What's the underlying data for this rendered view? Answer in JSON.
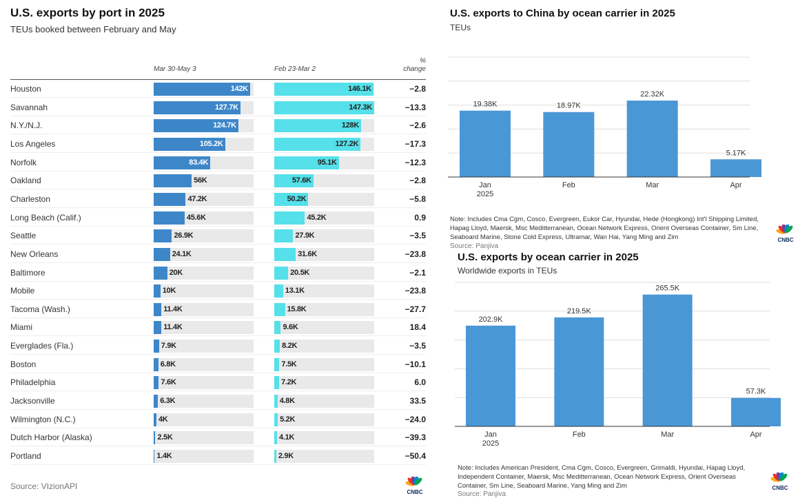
{
  "left": {
    "title": "U.S. exports by port in 2025",
    "subtitle": "TEUs booked between February and May",
    "col1": "Mar 30-May 3",
    "col2": "Feb 23-Mar 2",
    "col3a": "%",
    "col3b": "change",
    "source": "Source: VIzionAPI",
    "logo": "CNBC"
  },
  "chart_data": [
    {
      "type": "table",
      "title": "U.S. exports by port in 2025",
      "columns": [
        "Port",
        "Mar 30-May 3",
        "Feb 23-Mar 2",
        "% change"
      ],
      "colors": [
        "#3d87c9",
        "#55e0ea"
      ],
      "rows": [
        [
          "Houston",
          142,
          "142K",
          146.1,
          "146.1K",
          "−2.8"
        ],
        [
          "Savannah",
          127.7,
          "127.7K",
          147.3,
          "147.3K",
          "−13.3"
        ],
        [
          "N.Y./N.J.",
          124.7,
          "124.7K",
          128,
          "128K",
          "−2.6"
        ],
        [
          "Los Angeles",
          105.2,
          "105.2K",
          127.2,
          "127.2K",
          "−17.3"
        ],
        [
          "Norfolk",
          83.4,
          "83.4K",
          95.1,
          "95.1K",
          "−12.3"
        ],
        [
          "Oakland",
          56,
          "56K",
          57.6,
          "57.6K",
          "−2.8"
        ],
        [
          "Charleston",
          47.2,
          "47.2K",
          50.2,
          "50.2K",
          "−5.8"
        ],
        [
          "Long Beach (Calif.)",
          45.6,
          "45.6K",
          45.2,
          "45.2K",
          "0.9"
        ],
        [
          "Seattle",
          26.9,
          "26.9K",
          27.9,
          "27.9K",
          "−3.5"
        ],
        [
          "New Orleans",
          24.1,
          "24.1K",
          31.6,
          "31.6K",
          "−23.8"
        ],
        [
          "Baltimore",
          20,
          "20K",
          20.5,
          "20.5K",
          "−2.1"
        ],
        [
          "Mobile",
          10,
          "10K",
          13.1,
          "13.1K",
          "−23.8"
        ],
        [
          "Tacoma (Wash.)",
          11.4,
          "11.4K",
          15.8,
          "15.8K",
          "−27.7"
        ],
        [
          "Miami",
          11.4,
          "11.4K",
          9.6,
          "9.6K",
          "18.4"
        ],
        [
          "Everglades (Fla.)",
          7.9,
          "7.9K",
          8.2,
          "8.2K",
          "−3.5"
        ],
        [
          "Boston",
          6.8,
          "6.8K",
          7.5,
          "7.5K",
          "−10.1"
        ],
        [
          "Philadelphia",
          7.6,
          "7.6K",
          7.2,
          "7.2K",
          "6.0"
        ],
        [
          "Jacksonville",
          6.3,
          "6.3K",
          4.8,
          "4.8K",
          "33.5"
        ],
        [
          "Wilmington (N.C.)",
          4,
          "4K",
          5.2,
          "5.2K",
          "−24.0"
        ],
        [
          "Dutch Harbor (Alaska)",
          2.5,
          "2.5K",
          4.1,
          "4.1K",
          "−39.3"
        ],
        [
          "Portland",
          1.4,
          "1.4K",
          2.9,
          "2.9K",
          "−50.4"
        ]
      ],
      "xlim": [
        0,
        147.3
      ]
    },
    {
      "type": "bar",
      "title": "U.S. exports to China by ocean carrier in 2025",
      "subtitle": "TEUs",
      "categories": [
        "Jan\n2025",
        "Feb",
        "Mar",
        "Apr"
      ],
      "values": [
        19380,
        18970,
        22320,
        5170
      ],
      "labels": [
        "19.38K",
        "18.97K",
        "22.32K",
        "5.17K"
      ],
      "ylim": [
        0,
        35000
      ],
      "color": "#4a97d6",
      "note": "Note: Includes Cma Cgm, Cosco, Evergreen, Eukor Car, Hyundai, Hede (Hongkong) Int'l Shipping Limited, Hapag Lloyd, Maersk, Msc Meditterranean, Ocean Network Express, Orient Overseas Container, Sm Line, Seaboard Marine, Stone Cold Express, Ultramar, Wan Hai, Yang Ming and Zim",
      "source": "Source: Panjiva",
      "logo": "CNBC"
    },
    {
      "type": "bar",
      "title": "U.S. exports by ocean carrier in 2025",
      "subtitle": "Worldwide exports in TEUs",
      "categories": [
        "Jan\n2025",
        "Feb",
        "Mar",
        "Apr"
      ],
      "values": [
        202900,
        219500,
        265500,
        57300
      ],
      "labels": [
        "202.9K",
        "219.5K",
        "265.5K",
        "57.3K"
      ],
      "ylim": [
        0,
        290000
      ],
      "color": "#4a97d6",
      "note": "Note: Includes American President, Cma Cgm, Cosco, Evergreen, Grimaldi, Hyundai, Hapag Lloyd, Independent Container, Maersk, Msc Meditterranean, Ocean Network Express, Orient Overseas Container, Sm Line, Seaboard Marine, Yang Ming and Zim",
      "source": "Source: Panjiva",
      "logo": "CNBC"
    }
  ]
}
